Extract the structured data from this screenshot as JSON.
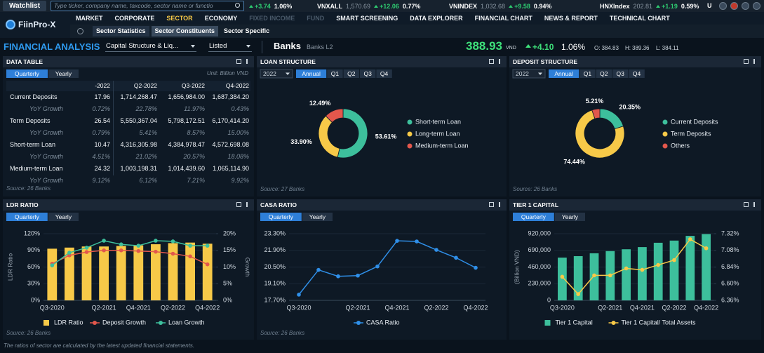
{
  "top_bar": {
    "watchlist": "Watchlist",
    "search_placeholder": "Type ticker, company name, taxcode, sector name or functio",
    "tickers": [
      {
        "change": "+3.74",
        "percent": "1.06%"
      },
      {
        "name": "VNXALL",
        "value": "1,570.69",
        "change": "+12.06",
        "percent": "0.77%"
      },
      {
        "name": "VNINDEX",
        "value": "1,032.68",
        "change": "+9.58",
        "percent": "0.94%"
      },
      {
        "name": "HNXIndex",
        "value": "202.81",
        "change": "+1.19",
        "percent": "0.59%"
      }
    ],
    "user": "U"
  },
  "nav": {
    "logo": "FiinPro-X",
    "items": [
      {
        "label": "MARKET"
      },
      {
        "label": "CORPORATE"
      },
      {
        "label": "SECTOR",
        "active": true
      },
      {
        "label": "ECONOMY"
      },
      {
        "label": "FIXED INCOME",
        "disabled": true
      },
      {
        "label": "FUND",
        "disabled": true
      },
      {
        "label": "SMART SCREENING"
      },
      {
        "label": "DATA EXPLORER"
      },
      {
        "label": "FINANCIAL CHART"
      },
      {
        "label": "NEWS & REPORT"
      },
      {
        "label": "TECHNICAL CHART"
      }
    ],
    "sub_tabs": [
      {
        "label": "Sector Statistics"
      },
      {
        "label": "Sector Constituents",
        "active": true
      },
      {
        "label": "Sector Specific"
      }
    ]
  },
  "analysis_bar": {
    "title": "FINANCIAL ANALYSIS",
    "report": "Capital Structure & Liq...",
    "exchange": "Listed",
    "sector": "Banks",
    "level": "Banks L2",
    "price": "388.93",
    "currency": "VND",
    "change": "+4.10",
    "percent": "1.06%",
    "open": {
      "label": "O:",
      "value": "384.83"
    },
    "high": {
      "label": "H:",
      "value": "389.36"
    },
    "low": {
      "label": "L:",
      "value": "384.11"
    }
  },
  "data_table": {
    "title": "DATA TABLE",
    "tabs": [
      {
        "label": "Quarterly",
        "active": true
      },
      {
        "label": "Yearly"
      }
    ],
    "unit": "Unit: Billion VND",
    "columns": [
      "-2022",
      "Q2-2022",
      "Q3-2022",
      "Q4-2022"
    ],
    "rows": [
      {
        "label": "Current Deposits",
        "cells": [
          "17.96",
          "1,714,268.47",
          "1,656,984.00",
          "1,687,384.20"
        ]
      },
      {
        "label": "YoY Growth",
        "sub": true,
        "cells": [
          "0.72%",
          "22.78%",
          "11.97%",
          "0.43%"
        ]
      },
      {
        "label": "Term Deposits",
        "cells": [
          "26.54",
          "5,550,367.04",
          "5,798,172.51",
          "6,170,414.20"
        ]
      },
      {
        "label": "YoY Growth",
        "sub": true,
        "cells": [
          "0.79%",
          "5.41%",
          "8.57%",
          "15.00%"
        ]
      },
      {
        "label": "Short-term Loan",
        "cells": [
          "10.47",
          "4,316,305.98",
          "4,384,978.47",
          "4,572,698.08"
        ]
      },
      {
        "label": "YoY Growth",
        "sub": true,
        "cells": [
          "4.51%",
          "21.02%",
          "20.57%",
          "18.08%"
        ]
      },
      {
        "label": "Medium-term Loan",
        "cells": [
          "24.32",
          "1,003,198.31",
          "1,014,439.60",
          "1,065,114.90"
        ]
      },
      {
        "label": "YoY Growth",
        "sub": true,
        "cells": [
          "9.12%",
          "6.12%",
          "7.21%",
          "9.92%"
        ]
      }
    ],
    "source": "Source: 26 Banks"
  },
  "chart_data": [
    {
      "type": "pie",
      "title": "LOAN STRUCTURE",
      "year": "2022",
      "tabs": [
        {
          "label": "Annual",
          "active": true
        },
        {
          "label": "Q1"
        },
        {
          "label": "Q2"
        },
        {
          "label": "Q3"
        },
        {
          "label": "Q4"
        }
      ],
      "categories": [
        "Short-term Loan",
        "Long-term Loan",
        "Medium-term Loan"
      ],
      "values": [
        53.61,
        33.9,
        12.49
      ],
      "value_labels": [
        "53.61%",
        "33.90%",
        "12.49%"
      ],
      "colors": [
        "#3dbf9c",
        "#f7c948",
        "#e2574c"
      ],
      "source": "Source: 27 Banks"
    },
    {
      "type": "pie",
      "title": "DEPOSIT STRUCTURE",
      "year": "2022",
      "tabs": [
        {
          "label": "Annual",
          "active": true
        },
        {
          "label": "Q1"
        },
        {
          "label": "Q2"
        },
        {
          "label": "Q3"
        },
        {
          "label": "Q4"
        }
      ],
      "categories": [
        "Current Deposits",
        "Term Deposits",
        "Others"
      ],
      "values": [
        20.35,
        74.44,
        5.21
      ],
      "value_labels": [
        "20.35%",
        "74.44%",
        "5.21%"
      ],
      "colors": [
        "#3dbf9c",
        "#f7c948",
        "#e2574c"
      ],
      "source": "Source: 26 Banks"
    },
    {
      "type": "combo",
      "title": "LDR RATIO",
      "tabs": [
        {
          "label": "Quarterly",
          "active": true
        },
        {
          "label": "Yearly"
        }
      ],
      "categories": [
        "Q3-2020",
        null,
        null,
        "Q2-2021",
        null,
        "Q4-2021",
        null,
        "Q2-2022",
        null,
        "Q4-2022"
      ],
      "ylabel": "LDR Ratio",
      "y2label": "Growth",
      "ylim": [
        0,
        120
      ],
      "yticks": [
        {
          "value": 0,
          "label": "0%"
        },
        {
          "value": 30,
          "label": "30%"
        },
        {
          "value": 60,
          "label": "60%"
        },
        {
          "value": 90,
          "label": "90%"
        },
        {
          "value": 120,
          "label": "120%"
        }
      ],
      "y2lim": [
        0,
        20
      ],
      "y2ticks": [
        {
          "value": 0,
          "label": "0%"
        },
        {
          "value": 5,
          "label": "5%"
        },
        {
          "value": 10,
          "label": "10%"
        },
        {
          "value": 15,
          "label": "15%"
        },
        {
          "value": 20,
          "label": "20%"
        }
      ],
      "grid": true,
      "series": [
        {
          "name": "LDR Ratio",
          "type": "bar",
          "color": "#f7c948",
          "values": [
            93,
            95,
            97,
            97,
            98,
            99,
            101,
            103,
            104,
            102
          ]
        },
        {
          "name": "Deposit Growth",
          "type": "line",
          "axis": "y2",
          "color": "#e2574c",
          "values": [
            11.0,
            13.5,
            14.5,
            15.0,
            15.0,
            14.8,
            14.6,
            14.0,
            13.2,
            10.8
          ]
        },
        {
          "name": "Loan Growth",
          "type": "line",
          "axis": "y2",
          "color": "#3dbf9c",
          "values": [
            10.5,
            14.3,
            15.8,
            17.9,
            16.8,
            16.4,
            17.9,
            17.7,
            16.4,
            16.4
          ]
        }
      ],
      "source": "Source: 26 Banks"
    },
    {
      "type": "line",
      "title": "CASA RATIO",
      "tabs": [
        {
          "label": "Quarterly",
          "active": true
        },
        {
          "label": "Yearly"
        }
      ],
      "categories": [
        "Q3-2020",
        null,
        null,
        "Q2-2021",
        null,
        "Q4-2021",
        null,
        "Q2-2022",
        null,
        "Q4-2022"
      ],
      "ylim": [
        17.7,
        23.3
      ],
      "yticks": [
        {
          "value": 17.7,
          "label": "17.70%"
        },
        {
          "value": 19.1,
          "label": "19.10%"
        },
        {
          "value": 20.5,
          "label": "20.50%"
        },
        {
          "value": 21.9,
          "label": "21.90%"
        },
        {
          "value": 23.3,
          "label": "23.30%"
        }
      ],
      "grid": true,
      "series": [
        {
          "name": "CASA Ratio",
          "color": "#2f8fe8",
          "values": [
            18.18,
            20.26,
            19.72,
            19.78,
            20.55,
            22.7,
            22.65,
            21.94,
            21.28,
            20.44
          ]
        }
      ],
      "source": "Source: 26 Banks"
    },
    {
      "type": "combo",
      "title": "TIER 1 CAPITAL",
      "tabs": [
        {
          "label": "Quarterly",
          "active": true
        },
        {
          "label": "Yearly"
        }
      ],
      "categories": [
        "Q3-2020",
        null,
        null,
        "Q2-2021",
        null,
        "Q4-2021",
        null,
        "Q2-2022",
        null,
        "Q4-2022"
      ],
      "ylabel": "(Billion VND)",
      "ylim": [
        0,
        920000
      ],
      "yticks": [
        0,
        {
          "value": 230000,
          "label": "230,000"
        },
        {
          "value": 460000,
          "label": "460,000"
        },
        {
          "value": 690000,
          "label": "690,000"
        },
        {
          "value": 920000,
          "label": "920,000"
        }
      ],
      "y2lim": [
        6.36,
        7.32
      ],
      "y2ticks": [
        {
          "value": 6.36,
          "label": "6.36%"
        },
        {
          "value": 6.6,
          "label": "6.60%"
        },
        {
          "value": 6.84,
          "label": "6.84%"
        },
        {
          "value": 7.08,
          "label": "7.08%"
        },
        {
          "value": 7.32,
          "label": "7.32%"
        }
      ],
      "grid": true,
      "series": [
        {
          "name": "Tier 1 Capital",
          "type": "bar",
          "color": "#3dbf9c",
          "values": [
            590000,
            610000,
            650000,
            680000,
            705000,
            735000,
            795000,
            825000,
            890000,
            915000
          ]
        },
        {
          "name": "Tier 1 Capital/ Total Assets",
          "type": "line",
          "axis": "y2",
          "color": "#f7c948",
          "values": [
            6.7,
            6.45,
            6.72,
            6.72,
            6.82,
            6.8,
            6.87,
            6.94,
            7.24,
            7.11
          ]
        }
      ]
    }
  ],
  "footer": "The ratios of sector are calculated by the latest updated financial statements."
}
